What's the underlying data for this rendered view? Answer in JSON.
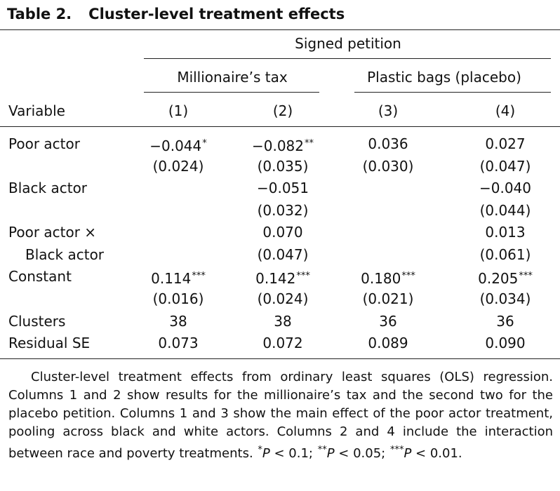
{
  "title": {
    "number": "Table 2.",
    "caption": "Cluster-level treatment effects"
  },
  "header": {
    "spanner": "Signed petition",
    "groups": [
      "Millionaire’s tax",
      "Plastic bags (placebo)"
    ],
    "variable_label": "Variable",
    "columns": [
      "(1)",
      "(2)",
      "(3)",
      "(4)"
    ]
  },
  "rows": {
    "poor_actor": {
      "label": "Poor actor",
      "coef": [
        "−0.044",
        "−0.082",
        "0.036",
        "0.027"
      ],
      "stars": [
        "*",
        "**",
        "",
        ""
      ],
      "se": [
        "(0.024)",
        "(0.035)",
        "(0.030)",
        "(0.047)"
      ]
    },
    "black_actor": {
      "label": "Black actor",
      "coef": [
        "",
        "−0.051",
        "",
        "−0.040"
      ],
      "se": [
        "",
        "(0.032)",
        "",
        "(0.044)"
      ]
    },
    "interaction": {
      "label_line1": "Poor actor ×",
      "label_line2": "Black actor",
      "coef": [
        "",
        "0.070",
        "",
        "0.013"
      ],
      "se": [
        "",
        "(0.047)",
        "",
        "(0.061)"
      ]
    },
    "constant": {
      "label": "Constant",
      "coef": [
        "0.114",
        "0.142",
        "0.180",
        "0.205"
      ],
      "stars": [
        "***",
        "***",
        "***",
        "***"
      ],
      "se": [
        "(0.016)",
        "(0.024)",
        "(0.021)",
        "(0.034)"
      ]
    },
    "clusters": {
      "label": "Clusters",
      "values": [
        "38",
        "38",
        "36",
        "36"
      ]
    },
    "residual_se": {
      "label": "Residual SE",
      "values": [
        "0.073",
        "0.072",
        "0.089",
        "0.090"
      ]
    }
  },
  "notes": {
    "main": "Cluster-level treatment effects from ordinary least squares (OLS) regres­sion. Columns 1 and 2 show results for the millionaire’s tax and the second two for the placebo petition. Columns 1 and 3 show the main effect of the poor actor treatment, pooling across black and white actors. Columns 2 and 4 include the interaction between race and poverty treatments.",
    "sig1_stars": "*",
    "sig1_var": "P",
    "sig1_rel": " < 0.1; ",
    "sig2_stars": "**",
    "sig2_var": "P",
    "sig2_rel": " < 0.05; ",
    "sig3_stars": "***",
    "sig3_var": "P",
    "sig3_rel": " < 0.01."
  }
}
